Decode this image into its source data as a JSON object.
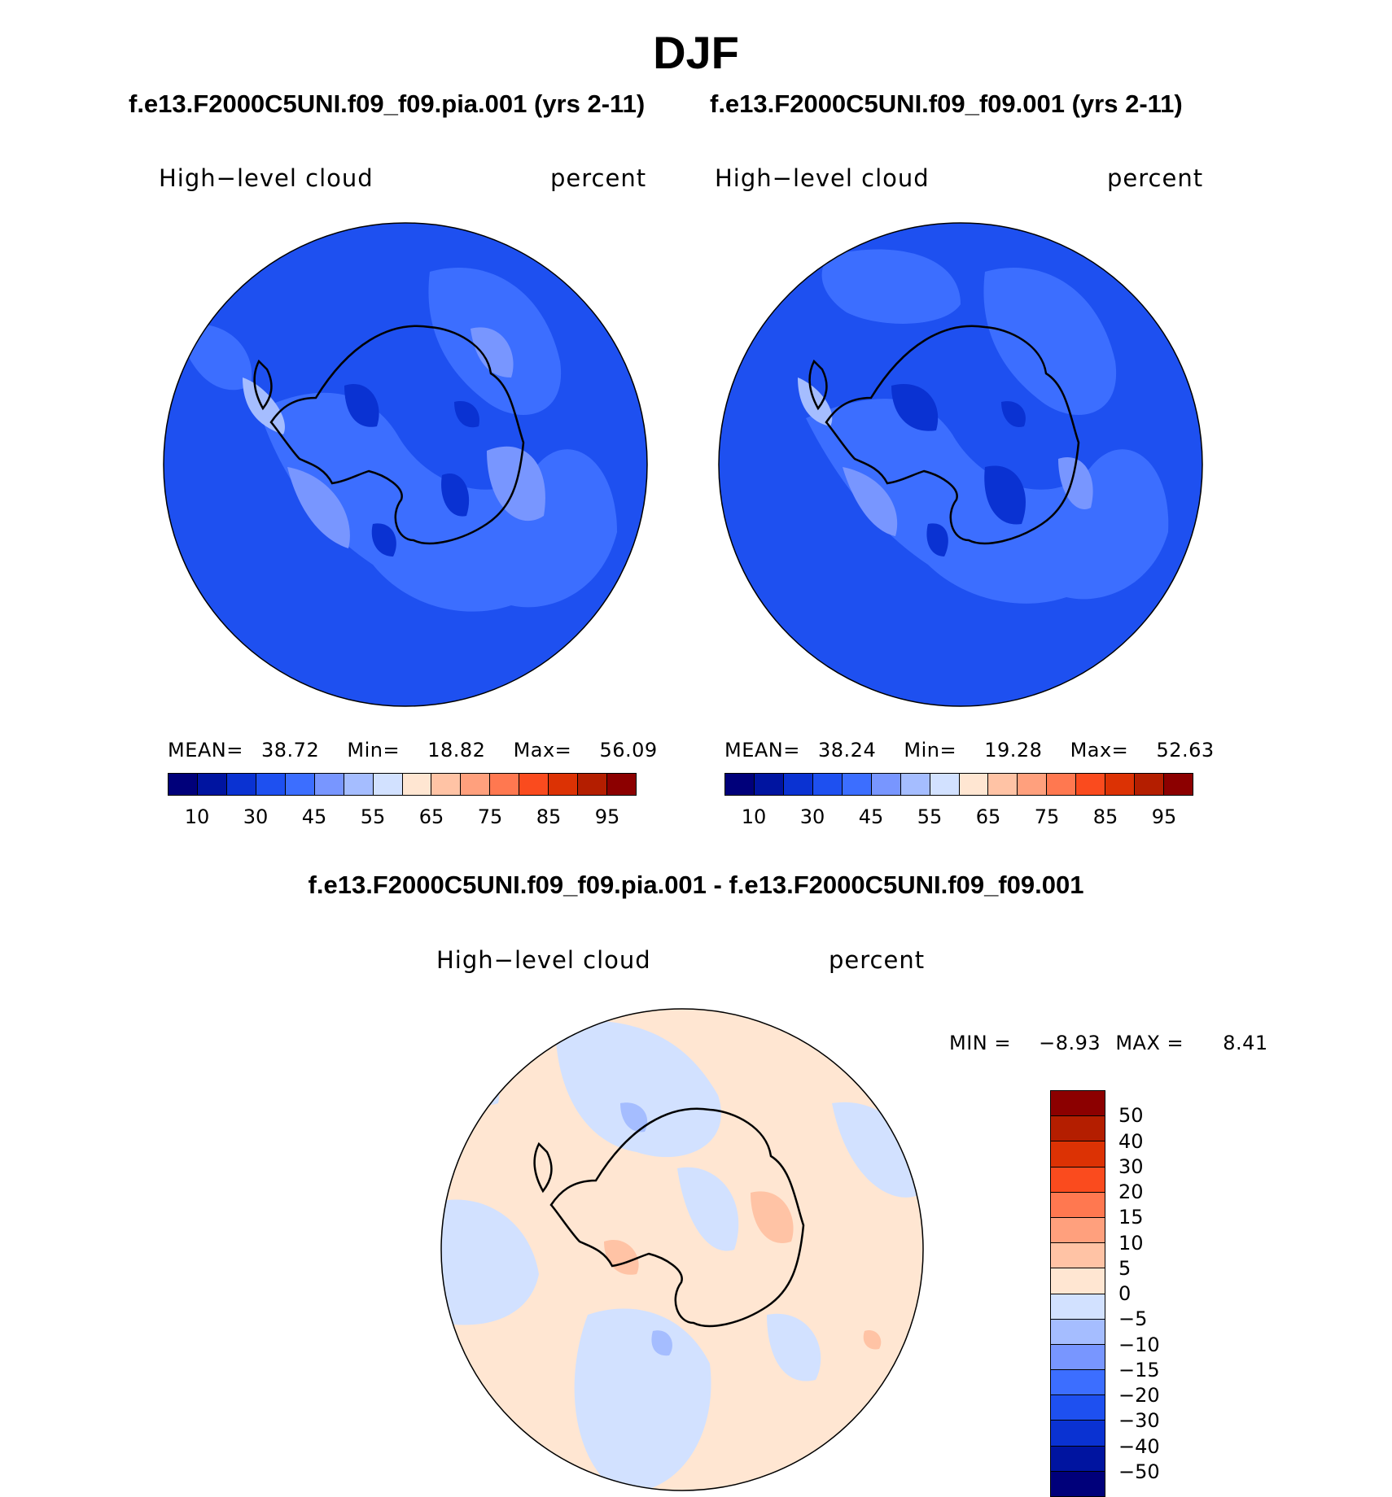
{
  "page_title": "DJF",
  "left_panel": {
    "case_title": "f.e13.F2000C5UNI.f09_f09.pia.001 (yrs 2-11)",
    "variable": "High−level cloud",
    "units": "percent",
    "stats": {
      "mean_label": "MEAN=",
      "mean": "38.72",
      "min_label": "Min=",
      "min": "18.82",
      "max_label": "Max=",
      "max": "56.09"
    }
  },
  "right_panel": {
    "case_title": "f.e13.F2000C5UNI.f09_f09.001 (yrs 2-11)",
    "variable": "High−level cloud",
    "units": "percent",
    "stats": {
      "mean_label": "MEAN=",
      "mean": "38.24",
      "min_label": "Min=",
      "min": "19.28",
      "max_label": "Max=",
      "max": "52.63"
    }
  },
  "diff_panel": {
    "title": "f.e13.F2000C5UNI.f09_f09.pia.001 - f.e13.F2000C5UNI.f09_f09.001",
    "variable": "High−level cloud",
    "units": "percent",
    "stats": {
      "min_label": "MIN =",
      "min": "−8.93",
      "max_label": "MAX =",
      "max": "8.41"
    }
  },
  "colorbar_abs": {
    "colors": [
      "#00007a",
      "#0014a0",
      "#0a32d2",
      "#1e50f0",
      "#3c6eff",
      "#7896ff",
      "#a5bdff",
      "#d2e1ff",
      "#ffe6d2",
      "#ffc3a5",
      "#ffa07d",
      "#ff7850",
      "#fa4b1e",
      "#dc3204",
      "#b41e00",
      "#8c0000"
    ],
    "tick_labels": [
      "10",
      "30",
      "45",
      "55",
      "65",
      "75",
      "85",
      "95"
    ]
  },
  "colorbar_diff": {
    "colors_top_to_bottom": [
      "#8c0000",
      "#b41e00",
      "#dc3204",
      "#fa4b1e",
      "#ff7850",
      "#ffa07d",
      "#ffc3a5",
      "#ffe6d2",
      "#d2e1ff",
      "#a5bdff",
      "#7896ff",
      "#3c6eff",
      "#1e50f0",
      "#0a32d2",
      "#0014a0",
      "#00007a"
    ],
    "tick_labels": [
      "50",
      "40",
      "30",
      "20",
      "15",
      "10",
      "5",
      "0",
      "−5",
      "−10",
      "−15",
      "−20",
      "−30",
      "−40",
      "−50"
    ]
  }
}
